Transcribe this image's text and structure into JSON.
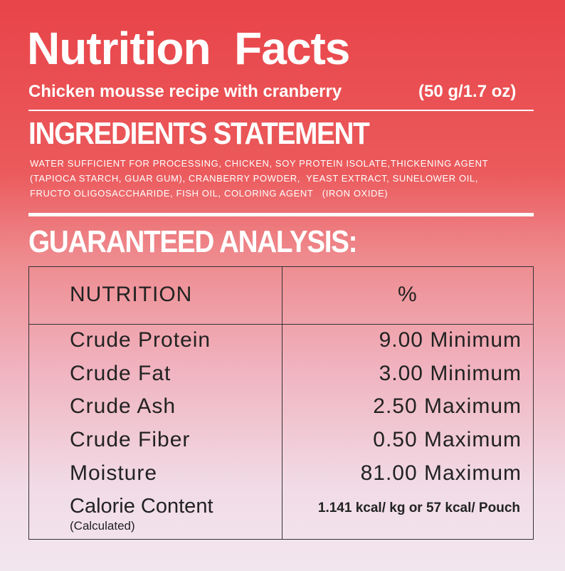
{
  "header": {
    "title": "Nutrition  Facts",
    "subtitle": "Chicken mousse recipe with cranberry",
    "size": "(50 g/1.7 oz)"
  },
  "ingredients": {
    "title": "INGREDIENTS STATEMENT",
    "lines": [
      "WATER SUFFICIENT FOR PROCESSING, CHICKEN, SOY PROTEIN ISOLATE,THICKENING AGENT",
      "(TAPIOCA STARCH, GUAR GUM), CRANBERRY POWDER,  YEAST EXTRACT, SUNELOWER OIL,",
      "FRUCTO OLIGOSACCHARIDE, FISH OIL, COLORING AGENT   (IRON OXIDE)"
    ]
  },
  "analysis": {
    "title": "GUARANTEED ANALYSIS:"
  },
  "table": {
    "header": [
      "NUTRITION",
      "%"
    ],
    "rows": [
      [
        "Crude Protein",
        "9.00 Minimum"
      ],
      [
        "Crude Fat",
        "3.00 Minimum"
      ],
      [
        "Crude Ash",
        "2.50 Maximum"
      ],
      [
        "Crude Fiber",
        "0.50 Maximum"
      ],
      [
        "Moisture",
        "81.00 Maximum"
      ],
      [
        "Calorie Content",
        "1.141 kcal/ kg or 57 kcal/ Pouch"
      ]
    ],
    "note": "(Calculated)"
  }
}
